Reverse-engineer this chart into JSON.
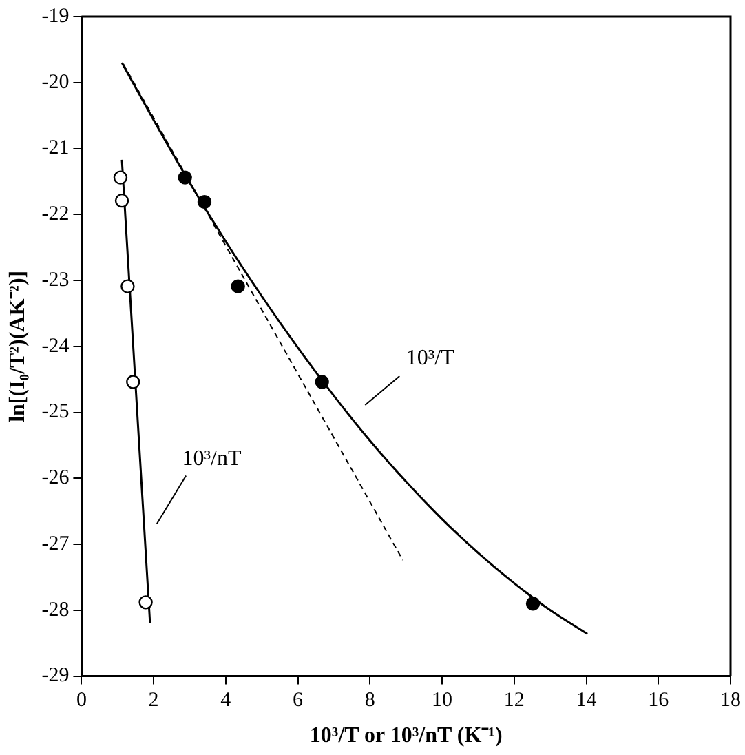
{
  "chart_data": {
    "type": "scatter",
    "xlabel": "10³/T or 10³/nT (K⁻¹)",
    "ylabel": "ln[(I₀/T²)(AK⁻²)]",
    "xlim": [
      0,
      18
    ],
    "xticks": [
      0,
      2,
      4,
      6,
      8,
      10,
      12,
      14,
      16,
      18
    ],
    "ylim": [
      -29,
      -19
    ],
    "yticks": [
      -29,
      -28,
      -27,
      -26,
      -25,
      -24,
      -23,
      -22,
      -21,
      -20,
      -19
    ],
    "grid": false,
    "legend": false,
    "series": [
      {
        "type": "scatter",
        "marker": "circle",
        "color": "#ffffff",
        "x": [
          1.08,
          1.12,
          1.28,
          1.43,
          1.78
        ],
        "values": [
          -21.44,
          -21.79,
          -23.09,
          -24.54,
          -27.88
        ]
      },
      {
        "type": "scatter",
        "marker": "circle",
        "color": "#000000",
        "x": [
          2.87,
          3.41,
          4.34,
          6.67,
          12.52
        ],
        "values": [
          -21.44,
          -21.81,
          -23.09,
          -24.54,
          -27.9
        ]
      },
      {
        "type": "line",
        "marker": "none",
        "line_style": "solid",
        "color": "#000000",
        "x": [
          1.12,
          1.9
        ],
        "values": [
          -21.17,
          -28.2
        ]
      },
      {
        "type": "line",
        "marker": "none",
        "line_style": "solid",
        "color": "#000000",
        "x": [
          1.12,
          2,
          3,
          4,
          5,
          6,
          7,
          8,
          9,
          10,
          11,
          12,
          13,
          14.03
        ],
        "values": [
          -19.7,
          -20.57,
          -21.52,
          -22.41,
          -23.24,
          -24.02,
          -24.75,
          -25.43,
          -26.05,
          -26.62,
          -27.13,
          -27.59,
          -28.0,
          -28.36
        ]
      },
      {
        "type": "line",
        "marker": "none",
        "line_style": "dashed",
        "color": "#000000",
        "x": [
          1.16,
          8.91
        ],
        "values": [
          -19.72,
          -27.24
        ]
      }
    ],
    "annotations": [
      "10³/T",
      "10³/nT"
    ]
  }
}
